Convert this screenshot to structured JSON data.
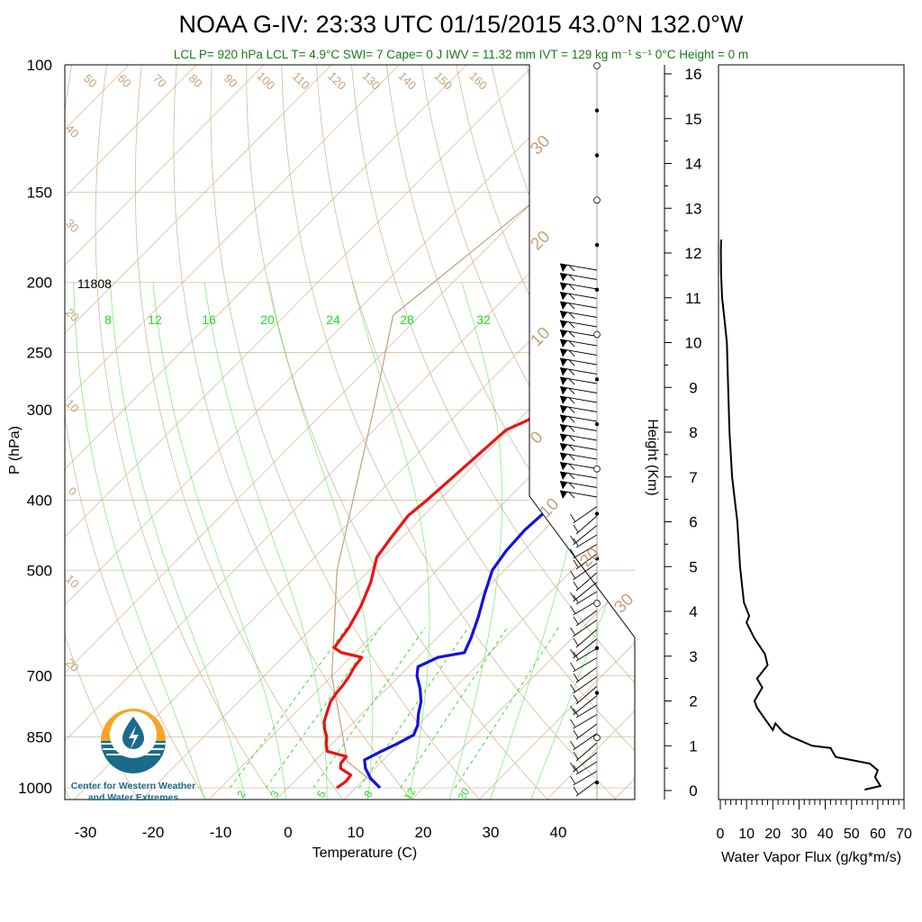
{
  "title": "NOAA G-IV: 23:33 UTC 01/15/2015  43.0°N 132.0°W",
  "subtitle": "LCL P= 920 hPa  LCL T= 4.9°C  SWI= 7  Cape= 0 J  IWV = 11.32 mm  IVT = 129 kg m⁻¹ s⁻¹  0°C Height = 0 m",
  "annotation_height": "11808",
  "logo": {
    "line1": "Center for Western Weather",
    "line2": "and Water Extremes",
    "icon": "water-drop-sun-icon"
  },
  "colors": {
    "temperature": "#ee1111",
    "dewpoint": "#1111dd",
    "grid": "#c8a27a",
    "mixing": "#22dd22",
    "logo_orange": "#f5a623",
    "logo_blue": "#1b6a8a"
  },
  "chart_data": [
    {
      "type": "line",
      "chart": "skew-t",
      "xlabel": "Temperature (C)",
      "ylabel": "P (hPa)",
      "x_ticks": [
        "-30",
        "-20",
        "-10",
        "0",
        "10",
        "20",
        "30",
        "40"
      ],
      "y_ticks": [
        "100",
        "150",
        "200",
        "250",
        "300",
        "400",
        "500",
        "700",
        "850",
        "1000"
      ],
      "p_ticks": [
        100,
        150,
        200,
        250,
        300,
        400,
        500,
        700,
        850,
        1000
      ],
      "mixing_ratio_labels": [
        "8",
        "12",
        "16",
        "20",
        "24",
        "28",
        "32"
      ],
      "mixing_ratio_labels_bottom": [
        "2",
        "3",
        "5",
        "8",
        "12",
        "20"
      ],
      "dry_adiabat_labels": [
        "50",
        "60",
        "70",
        "80",
        "90",
        "100",
        "110",
        "120",
        "130",
        "140",
        "150",
        "160"
      ],
      "isotherm_labels_left": [
        "40",
        "30",
        "20",
        "10",
        "0",
        "10",
        "20"
      ],
      "isotherm_labels_right": [
        "30",
        "20",
        "10",
        "0",
        "10",
        "20",
        "30"
      ],
      "series": [
        {
          "role": "temperature",
          "points": [
            [
              1000,
              7.2
            ],
            [
              980,
              7.6
            ],
            [
              960,
              7.4
            ],
            [
              940,
              4.9
            ],
            [
              925,
              4.2
            ],
            [
              905,
              4.0
            ],
            [
              890,
              0.4
            ],
            [
              870,
              -0.8
            ],
            [
              850,
              -1.8
            ],
            [
              830,
              -3.2
            ],
            [
              810,
              -4.4
            ],
            [
              780,
              -5.6
            ],
            [
              760,
              -6.4
            ],
            [
              740,
              -6.8
            ],
            [
              720,
              -7.0
            ],
            [
              700,
              -7.4
            ],
            [
              680,
              -8.0
            ],
            [
              660,
              -8.3
            ],
            [
              650,
              -12.0
            ],
            [
              640,
              -13.8
            ],
            [
              600,
              -14.6
            ],
            [
              560,
              -16.0
            ],
            [
              520,
              -18.0
            ],
            [
              480,
              -20.8
            ],
            [
              450,
              -21.6
            ],
            [
              420,
              -22.3
            ],
            [
              400,
              -21.8
            ],
            [
              370,
              -21.3
            ],
            [
              330,
              -20.6
            ],
            [
              320,
              -20.4
            ],
            [
              310,
              -18.6
            ],
            [
              290,
              -18.0
            ],
            [
              260,
              -18.0
            ],
            [
              240,
              -18.4
            ],
            [
              220,
              -19.0
            ],
            [
              205,
              -17.8
            ],
            [
              195,
              -16.5
            ],
            [
              185,
              -16.4
            ]
          ]
        },
        {
          "role": "dewpoint",
          "points": [
            [
              1000,
              13.6
            ],
            [
              970,
              10.8
            ],
            [
              940,
              8.6
            ],
            [
              915,
              7.2
            ],
            [
              890,
              8.4
            ],
            [
              870,
              9.6
            ],
            [
              845,
              10.8
            ],
            [
              820,
              10.0
            ],
            [
              790,
              8.4
            ],
            [
              760,
              7.0
            ],
            [
              730,
              5.0
            ],
            [
              700,
              2.6
            ],
            [
              680,
              1.4
            ],
            [
              660,
              3.0
            ],
            [
              650,
              6.2
            ],
            [
              620,
              5.0
            ],
            [
              580,
              3.0
            ],
            [
              540,
              0.6
            ],
            [
              500,
              -1.8
            ],
            [
              470,
              -2.6
            ],
            [
              440,
              -2.9
            ],
            [
              410,
              -2.5
            ],
            [
              380,
              -1.5
            ],
            [
              350,
              -1.2
            ],
            [
              330,
              -0.6
            ],
            [
              320,
              0.0
            ],
            [
              310,
              1.6
            ],
            [
              290,
              1.7
            ],
            [
              260,
              1.8
            ],
            [
              240,
              1.4
            ],
            [
              225,
              0.2
            ],
            [
              215,
              1.6
            ],
            [
              205,
              3.1
            ],
            [
              195,
              3.6
            ],
            [
              185,
              3.4
            ]
          ]
        },
        {
          "role": "parcel",
          "points": [
            [
              1000,
              13.6
            ],
            [
              920,
              4.9
            ],
            [
              700,
              -10.0
            ],
            [
              500,
              -24.8
            ],
            [
              300,
              -43.0
            ],
            [
              222,
              -54.0
            ],
            [
              130,
              -48.0
            ],
            [
              100,
              -44.0
            ]
          ]
        }
      ]
    },
    {
      "type": "line",
      "chart": "water-vapor-flux-profile",
      "xlabel": "Water Vapor Flux (g/kg*m/s)",
      "ylabel": "Height (Km)",
      "x_ticks": [
        "0",
        "10",
        "20",
        "30",
        "40",
        "50",
        "60",
        "70"
      ],
      "y_ticks": [
        "0",
        "1",
        "2",
        "3",
        "4",
        "5",
        "6",
        "7",
        "8",
        "9",
        "10",
        "11",
        "12",
        "13",
        "14",
        "15",
        "16"
      ],
      "xlim": [
        0,
        70
      ],
      "ylim": [
        0,
        16
      ],
      "points": [
        [
          55,
          0.02
        ],
        [
          61,
          0.1
        ],
        [
          59,
          0.3
        ],
        [
          60,
          0.45
        ],
        [
          57,
          0.6
        ],
        [
          44,
          0.75
        ],
        [
          42,
          0.95
        ],
        [
          35,
          1.0
        ],
        [
          27,
          1.2
        ],
        [
          24,
          1.3
        ],
        [
          21,
          1.5
        ],
        [
          20,
          1.35
        ],
        [
          17,
          1.6
        ],
        [
          14,
          1.85
        ],
        [
          13,
          2.0
        ],
        [
          16,
          2.3
        ],
        [
          14,
          2.5
        ],
        [
          18,
          2.8
        ],
        [
          17,
          3.05
        ],
        [
          13,
          3.4
        ],
        [
          10,
          3.75
        ],
        [
          11,
          3.9
        ],
        [
          9,
          4.2
        ],
        [
          7.5,
          5.0
        ],
        [
          7.0,
          5.5
        ],
        [
          6.5,
          6.0
        ],
        [
          4.5,
          7.0
        ],
        [
          3.5,
          8.0
        ],
        [
          3.0,
          9.0
        ],
        [
          2.5,
          10.0
        ],
        [
          1.6,
          10.5
        ],
        [
          0.7,
          11.0
        ],
        [
          0.3,
          11.5
        ],
        [
          0.2,
          12.0
        ],
        [
          0.3,
          12.3
        ]
      ]
    }
  ]
}
